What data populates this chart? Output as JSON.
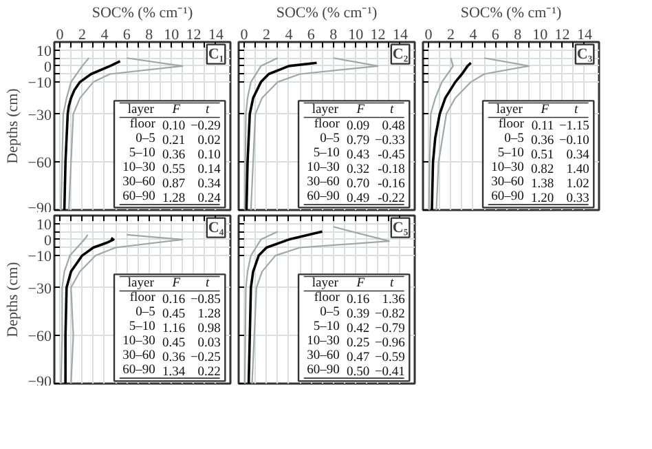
{
  "chart_data": [
    {
      "type": "line",
      "title": "C₁",
      "xlabel": "SOC% (% cm⁻¹)",
      "ylabel": "Depths (cm)",
      "xlim": [
        -0.5,
        15.3
      ],
      "ylim": [
        -90,
        15
      ],
      "xticks": [
        0,
        {
          "value": 1,
          "label": null
        },
        2,
        {
          "value": 3,
          "label": null
        },
        4,
        {
          "value": 5,
          "label": null
        },
        6,
        {
          "value": 7,
          "label": null
        },
        8,
        {
          "value": 9,
          "label": null
        },
        10,
        {
          "value": 11,
          "label": null
        },
        12,
        {
          "value": 13,
          "label": null
        },
        14
      ],
      "yticks": [
        10,
        {
          "value": 5,
          "label": null
        },
        0,
        {
          "value": -5,
          "label": null
        },
        {
          "value": -10,
          "label": "−10"
        },
        {
          "value": -30,
          "label": "−30"
        },
        {
          "value": -60,
          "label": "−60"
        },
        {
          "value": -90,
          "label": "−90"
        }
      ],
      "grid": true,
      "series": [
        {
          "color": "#9ea8a8",
          "x": [
            2.6,
            2.0,
            1.0,
            0.6,
            0.3,
            0.2,
            0.1
          ],
          "values": [
            5,
            0,
            -10,
            -20,
            -30,
            -60,
            -90
          ]
        },
        {
          "color": "#9ea8a8",
          "x": [
            6,
            11,
            4.5,
            3.0,
            1.8,
            1.2,
            1.0,
            0.8
          ],
          "values": [
            5,
            0,
            -5,
            -10,
            -20,
            -30,
            -60,
            -90
          ]
        },
        {
          "color": "#000000",
          "x": [
            5.4,
            4.5,
            2.8,
            1.8,
            1.3,
            1.0,
            0.8,
            0.7,
            0.6,
            0.5,
            0.4
          ],
          "values": [
            3,
            0,
            -5,
            -10,
            -15,
            -20,
            -25,
            -30,
            -45,
            -60,
            -90
          ]
        }
      ],
      "annotations": [
        "layer",
        "F",
        "t",
        "floor",
        "0.10",
        "−0.29",
        "0–5",
        "0.21",
        "0.02",
        "5–10",
        "0.36",
        "0.10",
        "10–30",
        "0.55",
        "0.14",
        "30–60",
        "0.87",
        "0.34",
        "60–90",
        "1.28",
        "0.24"
      ]
    },
    {
      "type": "line",
      "title": "C₂",
      "xlabel": "SOC% (% cm⁻¹)",
      "xlim": [
        -0.5,
        15.3
      ],
      "ylim": [
        -90,
        15
      ],
      "tick_labels": "x",
      "xticks": [
        0,
        {
          "value": 1,
          "label": null
        },
        2,
        {
          "value": 3,
          "label": null
        },
        4,
        {
          "value": 5,
          "label": null
        },
        6,
        {
          "value": 7,
          "label": null
        },
        8,
        {
          "value": 9,
          "label": null
        },
        10,
        {
          "value": 11,
          "label": null
        },
        12,
        {
          "value": 13,
          "label": null
        },
        14
      ],
      "yticks": [
        10,
        5,
        0,
        -5,
        -10,
        -30,
        -60,
        -90
      ],
      "grid": true,
      "series": [
        {
          "color": "#9ea8a8",
          "x": [
            3.0,
            1.5,
            0.6,
            0.3,
            0.15,
            0.1,
            0.05
          ],
          "values": [
            5,
            0,
            -10,
            -20,
            -30,
            -60,
            -90
          ]
        },
        {
          "color": "#9ea8a8",
          "x": [
            8,
            12,
            5.0,
            3.0,
            1.6,
            1.0,
            0.8,
            0.6
          ],
          "values": [
            5,
            0,
            -5,
            -10,
            -20,
            -30,
            -60,
            -90
          ]
        },
        {
          "color": "#000000",
          "x": [
            6.5,
            4.0,
            2.2,
            1.5,
            0.8,
            0.5,
            0.3,
            0.2
          ],
          "values": [
            2,
            0,
            -5,
            -10,
            -20,
            -30,
            -60,
            -90
          ]
        }
      ],
      "annotations": [
        "layer",
        "F",
        "t",
        "floor",
        "0.09",
        "0.48",
        "0–5",
        "0.79",
        "−0.33",
        "5–10",
        "0.43",
        "-0.45",
        "10–30",
        "0.32",
        "-0.18",
        "30–60",
        "0.70",
        "-0.16",
        "60–90",
        "0.49",
        "-0.22"
      ]
    },
    {
      "type": "line",
      "title": "C₃",
      "xlabel": "SOC% (% cm⁻¹)",
      "xlim": [
        -0.5,
        15.3
      ],
      "ylim": [
        -90,
        15
      ],
      "tick_labels": "x",
      "xticks": [
        0,
        {
          "value": 1,
          "label": null
        },
        2,
        {
          "value": 3,
          "label": null
        },
        4,
        {
          "value": 5,
          "label": null
        },
        6,
        {
          "value": 7,
          "label": null
        },
        8,
        {
          "value": 9,
          "label": null
        },
        10,
        {
          "value": 11,
          "label": null
        },
        12,
        {
          "value": 13,
          "label": null
        },
        14
      ],
      "yticks": [
        10,
        5,
        0,
        -5,
        -10,
        -30,
        -60,
        -90
      ],
      "grid": true,
      "series": [
        {
          "color": "#9ea8a8",
          "x": [
            2.0,
            2.2,
            1.2,
            0.6,
            0.2,
            0.1,
            0.05
          ],
          "values": [
            5,
            0,
            -10,
            -20,
            -30,
            -60,
            -90
          ]
        },
        {
          "color": "#9ea8a8",
          "x": [
            5,
            9,
            5.0,
            3.8,
            2.4,
            1.6,
            0.9,
            0.7
          ],
          "values": [
            5,
            0,
            -5,
            -10,
            -20,
            -30,
            -60,
            -90
          ]
        },
        {
          "color": "#000000",
          "x": [
            3.8,
            3.5,
            3.0,
            2.4,
            1.5,
            1.0,
            0.6,
            0.4,
            0.3
          ],
          "values": [
            2,
            0,
            -5,
            -10,
            -20,
            -30,
            -45,
            -60,
            -90
          ]
        }
      ],
      "annotations": [
        "layer",
        "F",
        "t",
        "floor",
        "0.11",
        "−1.15",
        "0–5",
        "0.36",
        "−0.10",
        "5–10",
        "0.51",
        "0.34",
        "10–30",
        "0.82",
        "1.40",
        "30–60",
        "1.38",
        "1.02",
        "60–90",
        "1.20",
        "0.33"
      ]
    },
    {
      "type": "line",
      "title": "C₄",
      "ylabel": "Depths (cm)",
      "xlim": [
        -0.5,
        15.3
      ],
      "ylim": [
        -90,
        15
      ],
      "tick_labels": "y",
      "xticks": [
        0,
        1,
        2,
        3,
        4,
        5,
        6,
        7,
        8,
        9,
        10,
        11,
        12,
        13,
        14
      ],
      "yticks": [
        10,
        {
          "value": 5,
          "label": null
        },
        0,
        {
          "value": -5,
          "label": null
        },
        {
          "value": -10,
          "label": "−10"
        },
        {
          "value": -30,
          "label": "−30"
        },
        {
          "value": -60,
          "label": "−60"
        },
        {
          "value": -90,
          "label": "−90"
        }
      ],
      "grid": true,
      "series": [
        {
          "color": "#9ea8a8",
          "x": [
            2.5,
            2.2,
            0.9,
            0.4,
            0.2,
            0.2,
            0.1
          ],
          "values": [
            3,
            0,
            -10,
            -20,
            -30,
            -60,
            -90
          ]
        },
        {
          "color": "#9ea8a8",
          "x": [
            6,
            11,
            5.0,
            3.2,
            1.8,
            1.0,
            1.2,
            1.0
          ],
          "values": [
            3,
            0,
            -5,
            -10,
            -20,
            -30,
            -60,
            -90
          ]
        },
        {
          "color": "#000000",
          "x": [
            4.6,
            4.8,
            4.2,
            3.0,
            2.0,
            1.0,
            0.6,
            0.5,
            0.5
          ],
          "values": [
            1,
            0,
            -2,
            -5,
            -10,
            -20,
            -30,
            -60,
            -90
          ]
        }
      ],
      "annotations": [
        "layer",
        "F",
        "t",
        "floor",
        "0.16",
        "−0.85",
        "0–5",
        "0.45",
        "1.28",
        "5–10",
        "1.16",
        "0.98",
        "10–30",
        "0.45",
        "0.03",
        "30–60",
        "0.36",
        "−0.25",
        "60–90",
        "1.34",
        "0.22"
      ]
    },
    {
      "type": "line",
      "title": "C₅",
      "xlim": [
        -0.5,
        15.3
      ],
      "ylim": [
        -90,
        15
      ],
      "tick_labels": false,
      "xticks": [
        0,
        1,
        2,
        3,
        4,
        5,
        6,
        7,
        8,
        9,
        10,
        11,
        12,
        13,
        14
      ],
      "yticks": [
        10,
        5,
        0,
        -5,
        -10,
        -30,
        -60,
        -90
      ],
      "grid": true,
      "series": [
        {
          "color": "#9ea8a8",
          "x": [
            3.0,
            1.5,
            0.6,
            0.3,
            0.15,
            0.1,
            0.05
          ],
          "values": [
            5,
            0,
            -10,
            -20,
            -30,
            -60,
            -90
          ]
        },
        {
          "color": "#9ea8a8",
          "x": [
            8,
            13,
            5.0,
            2.8,
            1.6,
            1.1,
            0.9,
            0.7
          ],
          "values": [
            8,
            -1,
            -5,
            -10,
            -20,
            -30,
            -60,
            -90
          ]
        },
        {
          "color": "#000000",
          "x": [
            7.0,
            4.0,
            2.0,
            1.3,
            0.8,
            0.6,
            0.5,
            0.4
          ],
          "values": [
            5,
            0,
            -5,
            -10,
            -20,
            -30,
            -60,
            -90
          ]
        }
      ],
      "annotations": [
        "layer",
        "F",
        "t",
        "floor",
        "0.16",
        "1.36",
        "0–5",
        "0.39",
        "−0.82",
        "5–10",
        "0.42",
        "−0.79",
        "10–30",
        "0.25",
        "−0.96",
        "30–60",
        "0.47",
        "−0.59",
        "60–90",
        "0.50",
        "−0.41"
      ]
    }
  ]
}
